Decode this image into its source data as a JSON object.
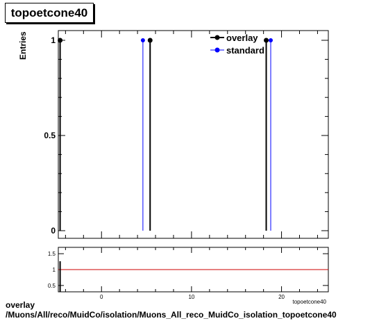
{
  "title": "topoetcone40",
  "footer": {
    "line1": "overlay",
    "line2": "/Muons/All/reco/MuidCo/isolation/Muons_All_reco_MuidCo_isolation_topoetcone40"
  },
  "chart_data": {
    "type": "histogram",
    "ylabel": "Entries",
    "xlabel": "topoetcone40",
    "xlim": [
      -4.8,
      25.2
    ],
    "ylim": [
      0,
      1.05
    ],
    "x_ticks": [
      0,
      10,
      20
    ],
    "y_ticks": [
      0,
      0.5,
      1
    ],
    "legend_position": "top-right",
    "series": [
      {
        "name": "overlay",
        "color": "#000000",
        "x": [
          -4.6,
          5.4,
          18.3
        ],
        "values": [
          1,
          1,
          1
        ]
      },
      {
        "name": "standard",
        "color": "#0000ff",
        "x": [
          4.6,
          18.8
        ],
        "values": [
          1,
          1
        ]
      }
    ],
    "ratio": {
      "ylim": [
        0.3,
        1.7
      ],
      "y_ticks": [
        0.5,
        1,
        1.5
      ],
      "reference_line": 1,
      "reference_color": "#cc0000"
    }
  }
}
